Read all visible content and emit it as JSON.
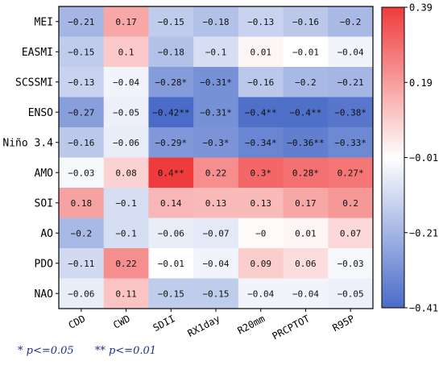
{
  "chart_data": {
    "type": "heatmap",
    "rows": [
      "MEI",
      "EASMI",
      "SCSSMI",
      "ENSO",
      "Niño 3.4",
      "AMO",
      "SOI",
      "AO",
      "PDO",
      "NAO"
    ],
    "columns": [
      "CDD",
      "CWD",
      "SDII",
      "RX1day",
      "R20mm",
      "PRCPTOT",
      "R95P"
    ],
    "values": [
      [
        -0.21,
        0.17,
        -0.15,
        -0.18,
        -0.13,
        -0.16,
        -0.2
      ],
      [
        -0.15,
        0.1,
        -0.18,
        -0.1,
        0.01,
        -0.01,
        -0.04
      ],
      [
        -0.13,
        -0.04,
        -0.28,
        -0.31,
        -0.16,
        -0.2,
        -0.21
      ],
      [
        -0.27,
        -0.05,
        -0.42,
        -0.31,
        -0.4,
        -0.4,
        -0.38
      ],
      [
        -0.16,
        -0.06,
        -0.29,
        -0.3,
        -0.34,
        -0.36,
        -0.33
      ],
      [
        -0.03,
        0.08,
        0.4,
        0.22,
        0.3,
        0.28,
        0.27
      ],
      [
        0.18,
        -0.1,
        0.14,
        0.13,
        0.13,
        0.17,
        0.2
      ],
      [
        -0.2,
        -0.1,
        -0.06,
        -0.07,
        -0.0,
        0.01,
        0.07
      ],
      [
        -0.11,
        0.22,
        -0.01,
        -0.04,
        0.09,
        0.06,
        -0.03
      ],
      [
        -0.06,
        0.11,
        -0.15,
        -0.15,
        -0.04,
        -0.04,
        -0.05
      ]
    ],
    "labels": [
      [
        "-0.21",
        "0.17",
        "-0.15",
        "-0.18",
        "-0.13",
        "-0.16",
        "-0.2"
      ],
      [
        "-0.15",
        "0.1",
        "-0.18",
        "-0.1",
        "0.01",
        "-0.01",
        "-0.04"
      ],
      [
        "-0.13",
        "-0.04",
        "-0.28*",
        "-0.31*",
        "-0.16",
        "-0.2",
        "-0.21"
      ],
      [
        "-0.27",
        "-0.05",
        "-0.42**",
        "-0.31*",
        "-0.4**",
        "-0.4**",
        "-0.38*"
      ],
      [
        "-0.16",
        "-0.06",
        "-0.29*",
        "-0.3*",
        "-0.34*",
        "-0.36**",
        "-0.33*"
      ],
      [
        "-0.03",
        "0.08",
        "0.4**",
        "0.22",
        "0.3*",
        "0.28*",
        "0.27*"
      ],
      [
        "0.18",
        "-0.1",
        "0.14",
        "0.13",
        "0.13",
        "0.17",
        "0.2"
      ],
      [
        "-0.2",
        "-0.1",
        "-0.06",
        "-0.07",
        "-0",
        "0.01",
        "0.07"
      ],
      [
        "-0.11",
        "0.22",
        "-0.01",
        "-0.04",
        "0.09",
        "0.06",
        "-0.03"
      ],
      [
        "-0.06",
        "0.11",
        "-0.15",
        "-0.15",
        "-0.04",
        "-0.04",
        "-0.05"
      ]
    ],
    "colorbar": {
      "min": -0.41,
      "max": 0.39,
      "ticks": [
        0.39,
        0.19,
        -0.01,
        -0.21,
        -0.41
      ],
      "tick_labels": [
        "0.39",
        "0.19",
        "−0.01",
        "−0.21",
        "−0.41"
      ],
      "low_color": "#4a6cc8",
      "mid_color": "#ffffff",
      "high_color": "#ef3b3b",
      "placement": "right"
    },
    "legend": {
      "significance": [
        "* p<=0.05",
        "** p<=0.01"
      ],
      "color": "#1f2f8f"
    }
  }
}
